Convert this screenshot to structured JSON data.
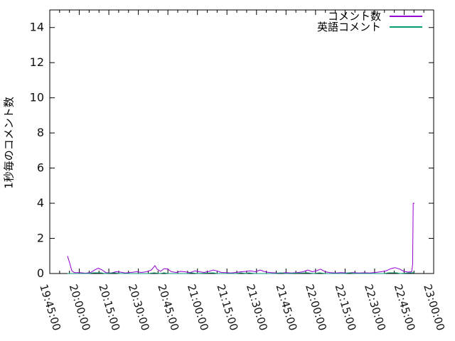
{
  "chart_data": {
    "type": "line",
    "title": "",
    "xlabel": "",
    "ylabel": "1秒毎のコメント数",
    "ylim": [
      0,
      15
    ],
    "yticks": [
      0,
      2,
      4,
      6,
      8,
      10,
      12,
      14
    ],
    "xtick_labels": [
      "19:45:00",
      "20:00:00",
      "20:15:00",
      "20:30:00",
      "20:45:00",
      "21:00:00",
      "21:15:00",
      "21:30:00",
      "21:45:00",
      "22:00:00",
      "22:15:00",
      "22:30:00",
      "22:45:00",
      "23:00:00"
    ],
    "xtick_interval_minutes": 15,
    "minor_xtick_interval_minutes": 5,
    "x_unit": "minutes since 19:45:00",
    "x_range_minutes": [
      0,
      195
    ],
    "grid": false,
    "legend_position": "top-right-inside",
    "axis_color": "#000000",
    "series": [
      {
        "name": "コメント数",
        "color": "#9400d3",
        "points": [
          [
            9,
            1.0
          ],
          [
            10.1,
            0.6
          ],
          [
            11.2,
            0.15
          ],
          [
            12.6,
            0.05
          ],
          [
            15.2,
            0.05
          ],
          [
            18.1,
            0.02
          ],
          [
            20.6,
            0.05
          ],
          [
            22.8,
            0.2
          ],
          [
            24.6,
            0.3
          ],
          [
            26.4,
            0.22
          ],
          [
            28.5,
            0.05
          ],
          [
            31.1,
            0.03
          ],
          [
            33.6,
            0.1
          ],
          [
            35.8,
            0.08
          ],
          [
            38.3,
            0.03
          ],
          [
            41.2,
            0.06
          ],
          [
            44.1,
            0.1
          ],
          [
            46.6,
            0.06
          ],
          [
            49.1,
            0.1
          ],
          [
            51.6,
            0.2
          ],
          [
            53.4,
            0.45
          ],
          [
            54.5,
            0.25
          ],
          [
            56.3,
            0.12
          ],
          [
            58.1,
            0.28
          ],
          [
            59.9,
            0.25
          ],
          [
            61.8,
            0.1
          ],
          [
            64.3,
            0.06
          ],
          [
            66.4,
            0.12
          ],
          [
            68.6,
            0.1
          ],
          [
            71.1,
            0.05
          ],
          [
            73.7,
            0.15
          ],
          [
            75.8,
            0.1
          ],
          [
            78.4,
            0.06
          ],
          [
            80.9,
            0.12
          ],
          [
            83.1,
            0.2
          ],
          [
            84.9,
            0.15
          ],
          [
            87,
            0.06
          ],
          [
            89.6,
            0.05
          ],
          [
            92.1,
            0.03
          ],
          [
            94.6,
            0.06
          ],
          [
            97.1,
            0.1
          ],
          [
            99.7,
            0.12
          ],
          [
            101.8,
            0.15
          ],
          [
            104.4,
            0.1
          ],
          [
            106.9,
            0.2
          ],
          [
            108.7,
            0.12
          ],
          [
            111.2,
            0.06
          ],
          [
            114.1,
            0.04
          ],
          [
            117,
            0.02
          ],
          [
            119.9,
            0.05
          ],
          [
            122.8,
            0.03
          ],
          [
            125.7,
            0.05
          ],
          [
            128.6,
            0.1
          ],
          [
            131.1,
            0.2
          ],
          [
            133.3,
            0.1
          ],
          [
            135.4,
            0.15
          ],
          [
            137.6,
            0.25
          ],
          [
            139.8,
            0.1
          ],
          [
            142.3,
            0.05
          ],
          [
            145.2,
            0.03
          ],
          [
            148.1,
            0.05
          ],
          [
            150.9,
            0.03
          ],
          [
            153.8,
            0.05
          ],
          [
            156.7,
            0.03
          ],
          [
            159.6,
            0.04
          ],
          [
            162.5,
            0.03
          ],
          [
            165.4,
            0.06
          ],
          [
            168.3,
            0.1
          ],
          [
            170.8,
            0.15
          ],
          [
            173.3,
            0.28
          ],
          [
            175.5,
            0.33
          ],
          [
            177.7,
            0.25
          ],
          [
            179.9,
            0.12
          ],
          [
            182,
            0.08
          ],
          [
            183.8,
            0.1
          ],
          [
            184.3,
            0.5
          ],
          [
            184.6,
            4.0
          ],
          [
            185.3,
            4.0
          ]
        ]
      },
      {
        "name": "英語コメント",
        "color": "#009e73",
        "points": [
          [
            9,
            0
          ],
          [
            20,
            0
          ],
          [
            22,
            0.04
          ],
          [
            26,
            0.04
          ],
          [
            28,
            0
          ],
          [
            33,
            0.04
          ],
          [
            35,
            0
          ],
          [
            50,
            0
          ],
          [
            53,
            0.04
          ],
          [
            56,
            0
          ],
          [
            58,
            0.04
          ],
          [
            60,
            0
          ],
          [
            70,
            0
          ],
          [
            72,
            0.04
          ],
          [
            75,
            0
          ],
          [
            83,
            0.04
          ],
          [
            85,
            0
          ],
          [
            95,
            0
          ],
          [
            97,
            0.04
          ],
          [
            100,
            0
          ],
          [
            101,
            0.04
          ],
          [
            104,
            0
          ],
          [
            115,
            0
          ],
          [
            117,
            0.04
          ],
          [
            120,
            0
          ],
          [
            131,
            0.04
          ],
          [
            134,
            0
          ],
          [
            137,
            0.04
          ],
          [
            140,
            0
          ],
          [
            150,
            0
          ],
          [
            152,
            0.04
          ],
          [
            155,
            0
          ],
          [
            170,
            0
          ],
          [
            172,
            0.04
          ],
          [
            176,
            0.04
          ],
          [
            178,
            0
          ],
          [
            183,
            0.04
          ],
          [
            185.3,
            0.05
          ]
        ]
      }
    ]
  }
}
